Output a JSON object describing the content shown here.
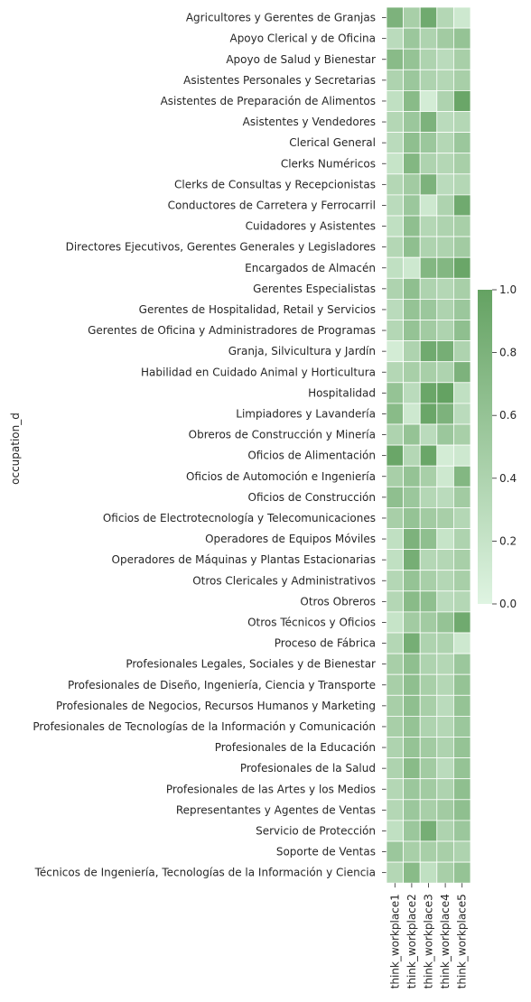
{
  "chart_data": {
    "type": "heatmap",
    "ylabel": "occupation_d",
    "xlabel": "",
    "columns": [
      "think_workplace1",
      "think_workplace2",
      "think_workplace3",
      "think_workplace4",
      "think_workplace5"
    ],
    "rows": [
      "Agricultores y Gerentes de Granjas",
      "Apoyo Clerical y de Oficina",
      "Apoyo de Salud y Bienestar",
      "Asistentes Personales y Secretarias",
      "Asistentes de Preparación de Alimentos",
      "Asistentes y Vendedores",
      "Clerical General",
      "Clerks Numéricos",
      "Clerks de Consultas y Recepcionistas",
      "Conductores de Carretera y Ferrocarril",
      "Cuidadores y Asistentes",
      "Directores Ejecutivos, Gerentes Generales y Legisladores",
      "Encargados de Almacén",
      "Gerentes Especialistas",
      "Gerentes de Hospitalidad, Retail y Servicios",
      "Gerentes de Oficina y Administradores de Programas",
      "Granja, Silvicultura y Jardín",
      "Habilidad en Cuidado Animal y Horticultura",
      "Hospitalidad",
      "Limpiadores y Lavandería",
      "Obreros de Construcción y Minería",
      "Oficios de Alimentación",
      "Oficios de Automoción e Ingeniería",
      "Oficios de Construcción",
      "Oficios de Electrotecnología y Telecomunicaciones",
      "Operadores de Equipos Móviles",
      "Operadores de Máquinas y Plantas Estacionarias",
      "Otros Clericales y Administrativos",
      "Otros Obreros",
      "Otros Técnicos y Oficios",
      "Proceso de Fábrica",
      "Profesionales Legales, Sociales y de Bienestar",
      "Profesionales de Diseño, Ingeniería, Ciencia y Transporte",
      "Profesionales de Negocios, Recursos Humanos y Marketing",
      "Profesionales de Tecnologías de la Información y Comunicación",
      "Profesionales de la Educación",
      "Profesionales de la Salud",
      "Profesionales de las Artes y los Medios",
      "Representantes y Agentes de Ventas",
      "Servicio de Protección",
      "Soporte de Ventas",
      "Técnicos de Ingeniería, Tecnologías de la Información y Ciencia"
    ],
    "values": [
      [
        0.8,
        0.45,
        0.9,
        0.35,
        0.15
      ],
      [
        0.3,
        0.55,
        0.4,
        0.5,
        0.6
      ],
      [
        0.7,
        0.6,
        0.4,
        0.3,
        0.45
      ],
      [
        0.4,
        0.55,
        0.4,
        0.35,
        0.45
      ],
      [
        0.25,
        0.7,
        0.1,
        0.4,
        0.95
      ],
      [
        0.35,
        0.55,
        0.8,
        0.3,
        0.35
      ],
      [
        0.3,
        0.65,
        0.55,
        0.35,
        0.55
      ],
      [
        0.2,
        0.75,
        0.4,
        0.35,
        0.45
      ],
      [
        0.35,
        0.5,
        0.8,
        0.3,
        0.35
      ],
      [
        0.3,
        0.55,
        0.15,
        0.4,
        0.9
      ],
      [
        0.25,
        0.65,
        0.35,
        0.4,
        0.45
      ],
      [
        0.35,
        0.65,
        0.4,
        0.4,
        0.5
      ],
      [
        0.25,
        0.15,
        0.75,
        0.75,
        0.95
      ],
      [
        0.4,
        0.65,
        0.4,
        0.35,
        0.45
      ],
      [
        0.3,
        0.6,
        0.55,
        0.4,
        0.55
      ],
      [
        0.35,
        0.6,
        0.5,
        0.4,
        0.65
      ],
      [
        0.1,
        0.4,
        0.9,
        0.85,
        0.4
      ],
      [
        0.35,
        0.45,
        0.45,
        0.4,
        0.8
      ],
      [
        0.6,
        0.3,
        0.95,
        1.0,
        0.25
      ],
      [
        0.7,
        0.15,
        0.95,
        0.8,
        0.3
      ],
      [
        0.4,
        0.6,
        0.3,
        0.55,
        0.45
      ],
      [
        0.95,
        0.35,
        0.95,
        0.1,
        0.15
      ],
      [
        0.45,
        0.6,
        0.45,
        0.15,
        0.75
      ],
      [
        0.65,
        0.55,
        0.35,
        0.3,
        0.5
      ],
      [
        0.45,
        0.6,
        0.5,
        0.45,
        0.35
      ],
      [
        0.25,
        0.8,
        0.65,
        0.2,
        0.4
      ],
      [
        0.25,
        0.85,
        0.35,
        0.35,
        0.45
      ],
      [
        0.35,
        0.6,
        0.45,
        0.35,
        0.45
      ],
      [
        0.35,
        0.7,
        0.65,
        0.3,
        0.35
      ],
      [
        0.2,
        0.5,
        0.5,
        0.6,
        0.9
      ],
      [
        0.35,
        0.85,
        0.4,
        0.4,
        0.15
      ],
      [
        0.45,
        0.65,
        0.4,
        0.35,
        0.55
      ],
      [
        0.45,
        0.65,
        0.45,
        0.35,
        0.6
      ],
      [
        0.45,
        0.65,
        0.45,
        0.3,
        0.6
      ],
      [
        0.45,
        0.6,
        0.4,
        0.35,
        0.55
      ],
      [
        0.4,
        0.6,
        0.5,
        0.4,
        0.6
      ],
      [
        0.4,
        0.7,
        0.5,
        0.3,
        0.6
      ],
      [
        0.35,
        0.55,
        0.5,
        0.4,
        0.65
      ],
      [
        0.35,
        0.55,
        0.45,
        0.5,
        0.65
      ],
      [
        0.25,
        0.55,
        0.85,
        0.4,
        0.55
      ],
      [
        0.55,
        0.45,
        0.45,
        0.45,
        0.4
      ],
      [
        0.35,
        0.7,
        0.25,
        0.45,
        0.6
      ]
    ],
    "colorbar": {
      "range": [
        0,
        1
      ],
      "ticks": [
        "0.0",
        "0.2",
        "0.4",
        "0.6",
        "0.8",
        "1.0"
      ],
      "color_low": "#dff4e2",
      "color_high": "#64a262"
    }
  }
}
